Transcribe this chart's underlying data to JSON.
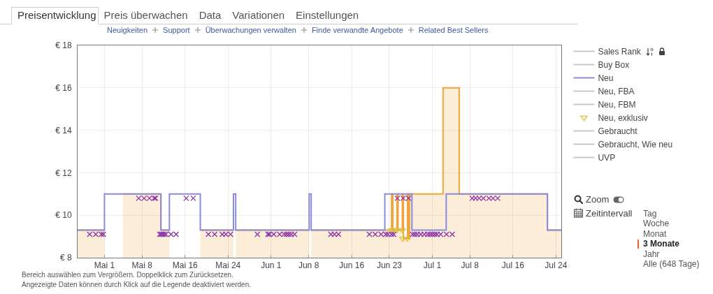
{
  "chart_data": {
    "type": "step",
    "xlim": [
      "--04-26",
      "--07-25"
    ],
    "xticks": [
      {
        "value": "--05-01",
        "label": "Mai 1"
      },
      {
        "value": "--05-08",
        "label": "Mai 8"
      },
      {
        "value": "--05-16",
        "label": "Mai 16"
      },
      {
        "value": "--05-24",
        "label": "Mai 24"
      },
      {
        "value": "--06-01",
        "label": "Jun 1"
      },
      {
        "value": "--06-08",
        "label": "Jun 8"
      },
      {
        "value": "--06-16",
        "label": "Jun 16"
      },
      {
        "value": "--06-23",
        "label": "Jun 23"
      },
      {
        "value": "--07-01",
        "label": "Jul 1"
      },
      {
        "value": "--07-08",
        "label": "Jul 8"
      },
      {
        "value": "--07-16",
        "label": "Jul 16"
      },
      {
        "value": "--07-24",
        "label": "Jul 24"
      }
    ],
    "ylim": [
      8,
      18
    ],
    "yticks": [
      {
        "value": 8,
        "label": "€ 8"
      },
      {
        "value": 10,
        "label": "€ 10"
      },
      {
        "value": 12,
        "label": "€ 12"
      },
      {
        "value": 14,
        "label": "€ 14"
      },
      {
        "value": 16,
        "label": "€ 16"
      },
      {
        "value": 18,
        "label": "€ 18"
      }
    ],
    "grid": true,
    "legend": "right",
    "series": [
      {
        "name": "Sales Rank",
        "color": "#c8c8c8"
      },
      {
        "name": "Buy Box",
        "color": "#c8c8c8"
      },
      {
        "type": "area",
        "color": "#f0a53a",
        "x": [
          "--04-26",
          "--05-01"
        ],
        "values": [
          9.3,
          9.3
        ]
      },
      {
        "type": "area",
        "color": "#f0a53a",
        "x": [
          "--05-04T10:00",
          "--05-11T12:00",
          "--05-11T12:00",
          "--05-13T02:00"
        ],
        "values": [
          11,
          11,
          9.3,
          9.3
        ]
      },
      {
        "type": "area",
        "color": "#f0a53a",
        "x": [
          "--05-18T20:00",
          "--05-25"
        ],
        "values": [
          9.3,
          9.3
        ]
      },
      {
        "type": "area",
        "color": "#f0a53a",
        "x": [
          "--05-25T10:00",
          "--06-08T02:00"
        ],
        "values": [
          9.3,
          9.3
        ]
      },
      {
        "type": "area",
        "color": "#f0a53a",
        "x": [
          "--06-08T11:00",
          "--06-23T10:00",
          "--06-23T10:00",
          "--06-23T16:00",
          "--06-23T16:00",
          "--06-24T10:00",
          "--06-24T10:00",
          "--06-24T15:00",
          "--06-24T15:00",
          "--06-25T10:00",
          "--06-25T10:00",
          "--06-25T15:00",
          "--06-25T15:00",
          "--06-26T09:00",
          "--06-26T09:00",
          "--06-26T14:00",
          "--06-26T14:00",
          "--06-26T18:00",
          "--06-26T18:00",
          "--07-03",
          "--07-03",
          "--07-06",
          "--07-06",
          "--07-22T10:00",
          "--07-22T10:00",
          "--07-25"
        ],
        "values": [
          9.3,
          9.3,
          11,
          11,
          9.3,
          9.3,
          11,
          11,
          9.3,
          9.3,
          11,
          11,
          8.9,
          8.9,
          11,
          11,
          8.9,
          8.9,
          11,
          11,
          16,
          16,
          11,
          11,
          9.3,
          9.3
        ]
      },
      {
        "name": "Neu",
        "color": "#8a8ade",
        "x": [
          "--04-26",
          "--05-01",
          "--05-11T12:00",
          "--05-13T02:00",
          "--05-18T20:00",
          "--05-25",
          "--05-25T10:00",
          "--06-08T02:00",
          "--06-08T11:00",
          "--06-22T04:00",
          "--06-27T05:00",
          "--07-03T14:00",
          "--07-22T10:00",
          "--07-25"
        ],
        "values": [
          9.3,
          11,
          9.3,
          11,
          9.3,
          11,
          9.3,
          11,
          9.3,
          11,
          9.3,
          11,
          9.3,
          9.3
        ]
      },
      {
        "name": "Neu, FBA",
        "color": "#c8c8c8"
      },
      {
        "name": "Neu, FBM",
        "color": "#c8c8c8"
      },
      {
        "name": "Neu, exklusiv",
        "type": "scatter",
        "color": "#d6c43c",
        "marker": "triangle",
        "x": [
          "--06-23T10:00",
          "--06-23T19:00",
          "--06-24T10:00",
          "--06-25T10:00",
          "--06-25T12:00",
          "--06-26T08:00"
        ],
        "values": [
          9.3,
          9.3,
          9.3,
          9.3,
          8.9,
          8.9
        ]
      },
      {
        "name": "Gebraucht",
        "color": "#c8c8c8"
      },
      {
        "name": "Gebraucht, Wie neu",
        "color": "#c8c8c8"
      },
      {
        "type": "scatter",
        "color": "#8b32a8",
        "marker": "cross",
        "x": [
          "--04-28T06:00",
          "--04-29T09:00",
          "--04-30T10:00",
          "--04-30T19:00",
          "--05-07T09:00",
          "--05-08T09:00",
          "--05-09T09:00",
          "--05-10T06:00",
          "--05-10T12:00",
          "--05-11T07:00",
          "--05-11T13:00",
          "--05-11T19:00",
          "--05-12T02:00",
          "--05-12T10:00",
          "--05-13T09:00",
          "--05-14T08:00",
          "--05-16T05:00",
          "--05-17T12:00",
          "--05-20T08:00",
          "--05-21T12:00",
          "--05-22T22:00",
          "--05-23T14:00",
          "--05-24T11:00",
          "--05-29T11:00",
          "--05-31T10:00",
          "--05-31T17:00",
          "--06-01T12:00",
          "--06-02T14:00",
          "--06-03T10:00",
          "--06-03T21:00",
          "--06-04T07:00",
          "--06-04T18:00",
          "--06-05T09:00",
          "--06-12T03:00",
          "--06-12T19:00",
          "--06-13T13:00",
          "--06-19T07:00",
          "--06-20T09:00",
          "--06-21T11:00",
          "--06-22T08:00",
          "--06-22T18:00",
          "--06-23T10:00",
          "--06-23T20:00",
          "--06-24T12:00",
          "--06-25T14:00",
          "--06-26T14:00",
          "--06-27T08:00",
          "--06-27T18:00",
          "--06-28T05:00",
          "--06-28T20:00",
          "--06-29T12:00",
          "--06-30T03:00",
          "--06-30T14:00",
          "--07-01T00:00",
          "--07-01T11:00",
          "--07-01T21:00",
          "--07-02T13:00",
          "--07-03T15:00",
          "--07-04T17:00",
          "--07-08T10:00",
          "--07-09T01:00",
          "--07-09T17:00",
          "--07-10T12:00",
          "--07-11T13:00",
          "--07-12T07:00",
          "--07-13T04:00"
        ],
        "values": [
          9.1,
          9.1,
          9.1,
          9.1,
          10.8,
          10.8,
          10.8,
          10.8,
          10.8,
          9.1,
          9.1,
          9.1,
          9.1,
          9.1,
          9.1,
          9.1,
          10.8,
          10.8,
          9.1,
          9.1,
          9.1,
          9.1,
          9.1,
          9.1,
          9.1,
          9.1,
          9.1,
          9.1,
          9.1,
          9.1,
          9.1,
          9.1,
          9.1,
          9.1,
          9.1,
          9.1,
          9.1,
          9.1,
          9.1,
          9.1,
          9.1,
          9.1,
          9.1,
          10.8,
          10.8,
          10.8,
          9.1,
          9.1,
          9.1,
          9.1,
          9.1,
          9.1,
          9.1,
          9.1,
          9.1,
          9.1,
          9.1,
          9.1,
          9.1,
          10.8,
          10.8,
          10.8,
          10.8,
          10.8,
          10.8,
          10.8
        ]
      },
      {
        "name": "UVP",
        "color": "#c8c8c8"
      }
    ],
    "annotations": [
      "Preisentwicklung",
      "Preis überwachen",
      "Data",
      "Variationen",
      "Einstellungen",
      "Neuigkeiten",
      "Support",
      "Überwachungen verwalten",
      "Finde verwandte Angebote",
      "Related Best Sellers",
      "Zoom",
      "Zeitintervall",
      "Tag",
      "Woche",
      "Monat",
      "3 Monate",
      "Jahr",
      "Alle (648 Tage)",
      "Bereich auswählen zum Vergrößern. Doppelklick zum Zurücksetzen.",
      "Angezeigte Daten können durch Klick auf die Legende deaktiviert werden."
    ]
  }
}
